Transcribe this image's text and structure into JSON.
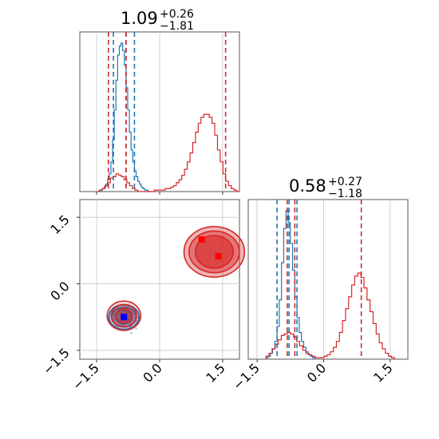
{
  "colors": {
    "blue": "#1f77b4",
    "red": "#d62728"
  },
  "chart_data": [
    {
      "type": "histogram",
      "panel": "param1",
      "title": {
        "value": "1.09",
        "plus": "+0.26",
        "minus": "−1.81"
      },
      "xlim": [
        -1.9,
        1.9
      ],
      "x_ticks": [
        "−1.5",
        "0.0",
        "1.5"
      ],
      "series": [
        {
          "color": "#1f77b4",
          "quantiles": [
            -1.1,
            -0.8,
            -0.6
          ],
          "bin_range": [
            -1.4,
            -0.2
          ],
          "counts": [
            1,
            2,
            3,
            5,
            8,
            12,
            20,
            35,
            55,
            75,
            92,
            98,
            100,
            95,
            85,
            70,
            55,
            40,
            28,
            20,
            14,
            10,
            7,
            5,
            3,
            2,
            1,
            1,
            0,
            0
          ]
        },
        {
          "color": "#d62728",
          "quantiles": [
            -1.22,
            -0.8,
            1.57
          ],
          "bin_range": [
            -1.5,
            1.9
          ],
          "counts": [
            0,
            1,
            2,
            4,
            6,
            9,
            10,
            12,
            11,
            10,
            8,
            6,
            4,
            2,
            1,
            0,
            0,
            0,
            0,
            0,
            0,
            1,
            1,
            1,
            1,
            2,
            2,
            3,
            4,
            6,
            8,
            11,
            15,
            20,
            26,
            33,
            40,
            46,
            50,
            52,
            52,
            50,
            46,
            38,
            28,
            20,
            12,
            7,
            4,
            2,
            1,
            0
          ]
        }
      ]
    },
    {
      "type": "histogram",
      "panel": "param2",
      "title": {
        "value": "0.58",
        "plus": "+0.27",
        "minus": "−1.18"
      },
      "xlim": [
        -1.7,
        1.9
      ],
      "x_ticks": [
        "−1.5",
        "0.0",
        "1.5"
      ],
      "series": [
        {
          "color": "#1f77b4",
          "quantiles": [
            -1.05,
            -0.78,
            -0.6
          ],
          "bin_range": [
            -1.3,
            -0.2
          ],
          "counts": [
            1,
            2,
            4,
            7,
            12,
            22,
            40,
            65,
            88,
            100,
            92,
            78,
            60,
            42,
            28,
            18,
            12,
            8,
            5,
            3,
            2,
            1
          ]
        },
        {
          "color": "#d62728",
          "quantiles": [
            -0.82,
            -0.65,
            0.85
          ],
          "bin_range": [
            -1.3,
            1.6
          ],
          "counts": [
            2,
            4,
            7,
            10,
            13,
            16,
            17,
            18,
            17,
            15,
            12,
            9,
            6,
            4,
            3,
            2,
            1,
            1,
            1,
            2,
            3,
            5,
            8,
            12,
            18,
            26,
            34,
            42,
            50,
            56,
            58,
            55,
            48,
            40,
            32,
            24,
            17,
            11,
            7,
            4,
            2,
            1
          ]
        }
      ]
    },
    {
      "type": "contour",
      "panel": "param1-vs-param2",
      "xlim": [
        -1.9,
        1.9
      ],
      "ylim": [
        -1.7,
        1.9
      ],
      "x_ticks": [
        "−1.5",
        "0.0",
        "1.5"
      ],
      "y_ticks": [
        "−1.5",
        "0.0",
        "1.5"
      ],
      "series": [
        {
          "color": "#1f77b4",
          "center": [
            -0.85,
            -0.75
          ],
          "marker": [
            -0.85,
            -0.75
          ]
        },
        {
          "color": "#d62728",
          "centers": [
            [
              -0.85,
              -0.72
            ],
            [
              1.35,
              0.7
            ]
          ],
          "markers": [
            [
              1.0,
              1.0
            ],
            [
              1.4,
              0.62
            ]
          ]
        }
      ]
    }
  ]
}
